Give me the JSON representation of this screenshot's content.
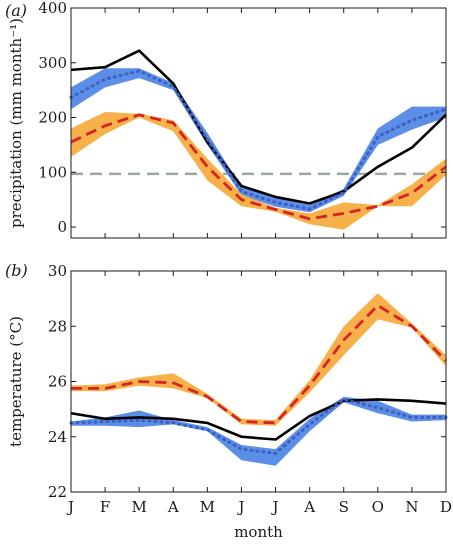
{
  "chart_data": [
    {
      "type": "line",
      "panel_label": "(a)",
      "ylabel": "precipitation (mm month⁻¹)",
      "ylim": [
        -20,
        400
      ],
      "yticks": [
        0,
        100,
        200,
        300,
        400
      ],
      "categories": [
        "J",
        "F",
        "M",
        "A",
        "M",
        "J",
        "J",
        "A",
        "S",
        "O",
        "N",
        "D"
      ],
      "reference_line": {
        "value": 97,
        "style": "dashed",
        "color": "#9aa8a0"
      },
      "series": [
        {
          "style": "solid",
          "color": "#000000",
          "values": [
            287,
            292,
            322,
            262,
            155,
            75,
            55,
            43,
            65,
            110,
            145,
            205
          ]
        },
        {
          "style": "dotted",
          "color": "#3d5fc2",
          "band_color": "#5b8ee6",
          "values": [
            237,
            270,
            285,
            256,
            160,
            65,
            45,
            33,
            63,
            165,
            195,
            215
          ],
          "band_low": [
            215,
            255,
            272,
            250,
            150,
            58,
            37,
            27,
            57,
            150,
            178,
            200
          ],
          "band_high": [
            255,
            290,
            290,
            263,
            172,
            73,
            53,
            40,
            70,
            180,
            220,
            220
          ]
        },
        {
          "style": "dashed",
          "color": "#d42424",
          "band_color": "#f7b04a",
          "values": [
            155,
            185,
            205,
            190,
            110,
            50,
            32,
            15,
            25,
            38,
            62,
            110
          ],
          "band_low": [
            128,
            170,
            200,
            175,
            85,
            38,
            28,
            5,
            -5,
            38,
            38,
            95
          ],
          "band_high": [
            180,
            210,
            207,
            195,
            125,
            60,
            35,
            25,
            45,
            40,
            78,
            125
          ]
        }
      ]
    },
    {
      "type": "line",
      "panel_label": "(b)",
      "ylabel": "temperature (°C)",
      "xlabel": "month",
      "ylim": [
        22,
        30
      ],
      "yticks": [
        22,
        24,
        26,
        28,
        30
      ],
      "categories": [
        "J",
        "F",
        "M",
        "A",
        "M",
        "J",
        "J",
        "A",
        "S",
        "O",
        "N",
        "D"
      ],
      "series": [
        {
          "style": "solid",
          "color": "#000000",
          "values": [
            24.85,
            24.65,
            24.7,
            24.65,
            24.5,
            24.0,
            23.9,
            24.75,
            25.3,
            25.35,
            25.3,
            25.2
          ]
        },
        {
          "style": "dotted",
          "color": "#3d5fc2",
          "band_color": "#5b8ee6",
          "values": [
            24.5,
            24.55,
            24.6,
            24.5,
            24.25,
            23.55,
            23.4,
            24.45,
            25.35,
            25.05,
            24.7,
            24.7
          ],
          "band_low": [
            24.4,
            24.4,
            24.35,
            24.45,
            24.2,
            23.15,
            22.95,
            24.2,
            25.25,
            24.85,
            24.55,
            24.6
          ],
          "band_high": [
            24.55,
            24.7,
            24.95,
            24.6,
            24.35,
            23.7,
            23.55,
            24.65,
            25.45,
            25.3,
            24.8,
            24.8
          ]
        },
        {
          "style": "dashed",
          "color": "#d42424",
          "band_color": "#f7b04a",
          "values": [
            25.75,
            25.75,
            26.0,
            25.95,
            25.45,
            24.55,
            24.5,
            25.85,
            27.5,
            28.75,
            28.0,
            26.75
          ],
          "band_low": [
            25.65,
            25.65,
            25.85,
            25.75,
            25.4,
            24.45,
            24.4,
            25.6,
            26.95,
            28.25,
            27.95,
            26.55
          ],
          "band_high": [
            25.85,
            25.9,
            26.15,
            26.3,
            25.55,
            24.65,
            24.6,
            26.05,
            28.0,
            29.2,
            28.1,
            26.95
          ]
        }
      ]
    }
  ]
}
